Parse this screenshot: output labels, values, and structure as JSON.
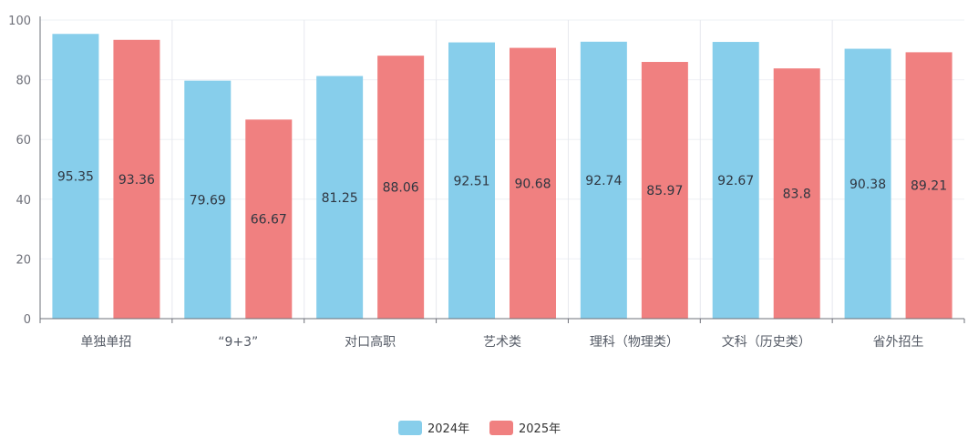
{
  "chart_data": {
    "type": "bar",
    "categories": [
      "单独单招",
      "“9+3”",
      "对口高职",
      "艺术类",
      "理科（物理类）",
      "文科（历史类）",
      "省外招生"
    ],
    "series": [
      {
        "name": "2024年",
        "color": "#87ceeb",
        "values": [
          95.35,
          79.69,
          81.25,
          92.51,
          92.74,
          92.67,
          90.38
        ]
      },
      {
        "name": "2025年",
        "color": "#f08080",
        "values": [
          93.36,
          66.67,
          88.06,
          90.68,
          85.97,
          83.8,
          89.21
        ]
      }
    ],
    "ylim": [
      0,
      100
    ],
    "yticks": [
      0,
      20,
      40,
      60,
      80,
      100
    ],
    "grid": true,
    "legend_position": "bottom-center",
    "title": "",
    "xlabel": "",
    "ylabel": ""
  }
}
